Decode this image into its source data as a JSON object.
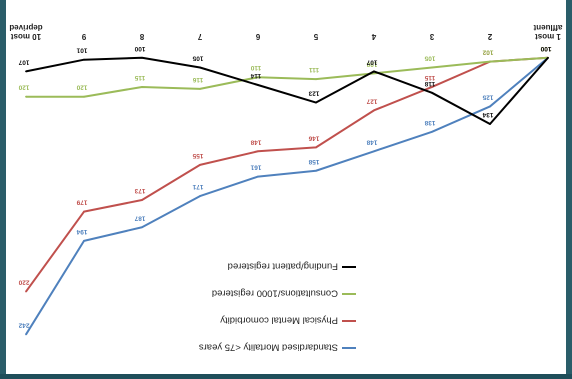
{
  "chart_data": {
    "type": "line",
    "orientation": "rotated-180",
    "categories": [
      "1 most affluent",
      "2",
      "3",
      "4",
      "5",
      "6",
      "7",
      "8",
      "9",
      "10 most deprived"
    ],
    "x_labels": [
      {
        "lines": [
          "1 most",
          "affluent"
        ]
      },
      {
        "lines": [
          "2"
        ]
      },
      {
        "lines": [
          "3"
        ]
      },
      {
        "lines": [
          "4"
        ]
      },
      {
        "lines": [
          "5"
        ]
      },
      {
        "lines": [
          "6"
        ]
      },
      {
        "lines": [
          "7"
        ]
      },
      {
        "lines": [
          "8"
        ]
      },
      {
        "lines": [
          "9"
        ]
      },
      {
        "lines": [
          "10 most",
          "deprived"
        ]
      }
    ],
    "ylim": [
      95,
      250
    ],
    "series": [
      {
        "name": "Standardised Mortality <75 years",
        "color": "#4f81bd",
        "values": [
          100,
          125,
          138,
          148,
          158,
          161,
          171,
          187,
          194,
          242
        ]
      },
      {
        "name": "Physical Mental comorbidity",
        "color": "#c0504d",
        "values": [
          100,
          102,
          115,
          127,
          146,
          148,
          155,
          173,
          179,
          220
        ]
      },
      {
        "name": "Consultations/1000 registered",
        "color": "#9bbb59",
        "values": [
          100,
          102,
          105,
          108,
          111,
          110,
          116,
          115,
          120,
          120
        ]
      },
      {
        "name": "Funding/patient registered",
        "color": "#000000",
        "values": [
          100,
          134,
          118,
          107,
          123,
          114,
          105,
          100,
          101,
          107
        ]
      }
    ],
    "legend_position": "bottom-left (chart rotated 180°)",
    "grid": false
  }
}
